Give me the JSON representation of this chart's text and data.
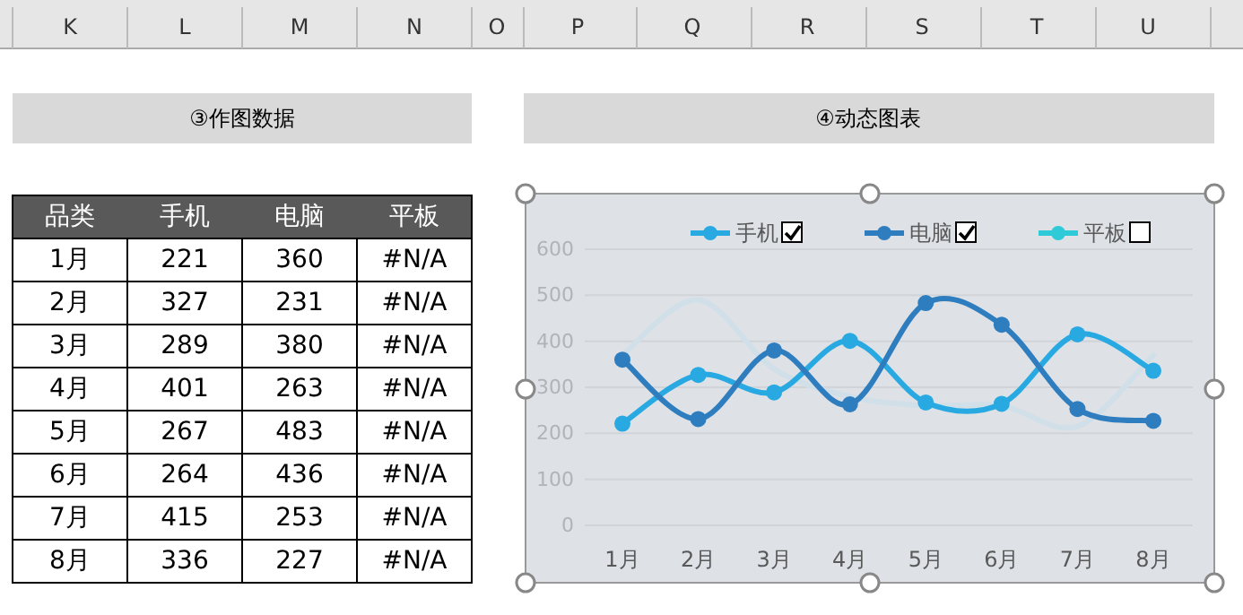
{
  "chart_data": [
    {
      "type": "heatmap",
      "title": "③作图数据",
      "ylabel": "品类",
      "annotations": [
        "K",
        "L",
        "M",
        "N",
        "O",
        "P",
        "Q",
        "R",
        "S",
        "T",
        "U"
      ],
      "categories": [
        "手机",
        "电脑",
        "平板"
      ],
      "y_categories": [
        "1月",
        "2月",
        "3月",
        "4月",
        "5月",
        "6月",
        "7月",
        "8月"
      ],
      "cells": [
        [
          null,
          null,
          null
        ],
        [
          null,
          null,
          null
        ],
        [
          null,
          null,
          null
        ],
        [
          null,
          null,
          null
        ],
        [
          null,
          null,
          null
        ],
        [
          null,
          null,
          null
        ],
        [
          null,
          null,
          null
        ],
        [
          null,
          null,
          null
        ]
      ],
      "cell_labels": [
        [
          "221",
          "360",
          "#N/A"
        ],
        [
          "327",
          "231",
          "#N/A"
        ],
        [
          "289",
          "380",
          "#N/A"
        ],
        [
          "401",
          "263",
          "#N/A"
        ],
        [
          "267",
          "483",
          "#N/A"
        ],
        [
          "264",
          "436",
          "#N/A"
        ],
        [
          "415",
          "253",
          "#N/A"
        ],
        [
          "336",
          "227",
          "#N/A"
        ]
      ]
    },
    {
      "type": "line",
      "title": "④动态图表",
      "categories": [
        "1月",
        "2月",
        "3月",
        "4月",
        "5月",
        "6月",
        "7月",
        "8月"
      ],
      "series": [
        {
          "name": "手机",
          "color": "#29a9e1",
          "values": [
            221,
            327,
            289,
            401,
            267,
            264,
            415,
            336
          ]
        },
        {
          "name": "电脑",
          "color": "#2e7dbf",
          "values": [
            360,
            231,
            380,
            263,
            483,
            436,
            253,
            227
          ]
        },
        {
          "name": "平板",
          "color": "#2ecad8",
          "values": [
            null,
            null,
            null,
            null,
            null,
            null,
            null,
            null
          ]
        },
        {
          "color": "#d0dfe8",
          "marker": "none",
          "values": [
            370,
            490,
            340,
            280,
            260,
            260,
            215,
            370
          ]
        }
      ],
      "ylim": [
        0,
        600
      ],
      "yticks": [
        0,
        100,
        200,
        300,
        400,
        500,
        600
      ],
      "grid": "y",
      "legend": "top",
      "marker": "circle",
      "line_style": "solid"
    }
  ]
}
